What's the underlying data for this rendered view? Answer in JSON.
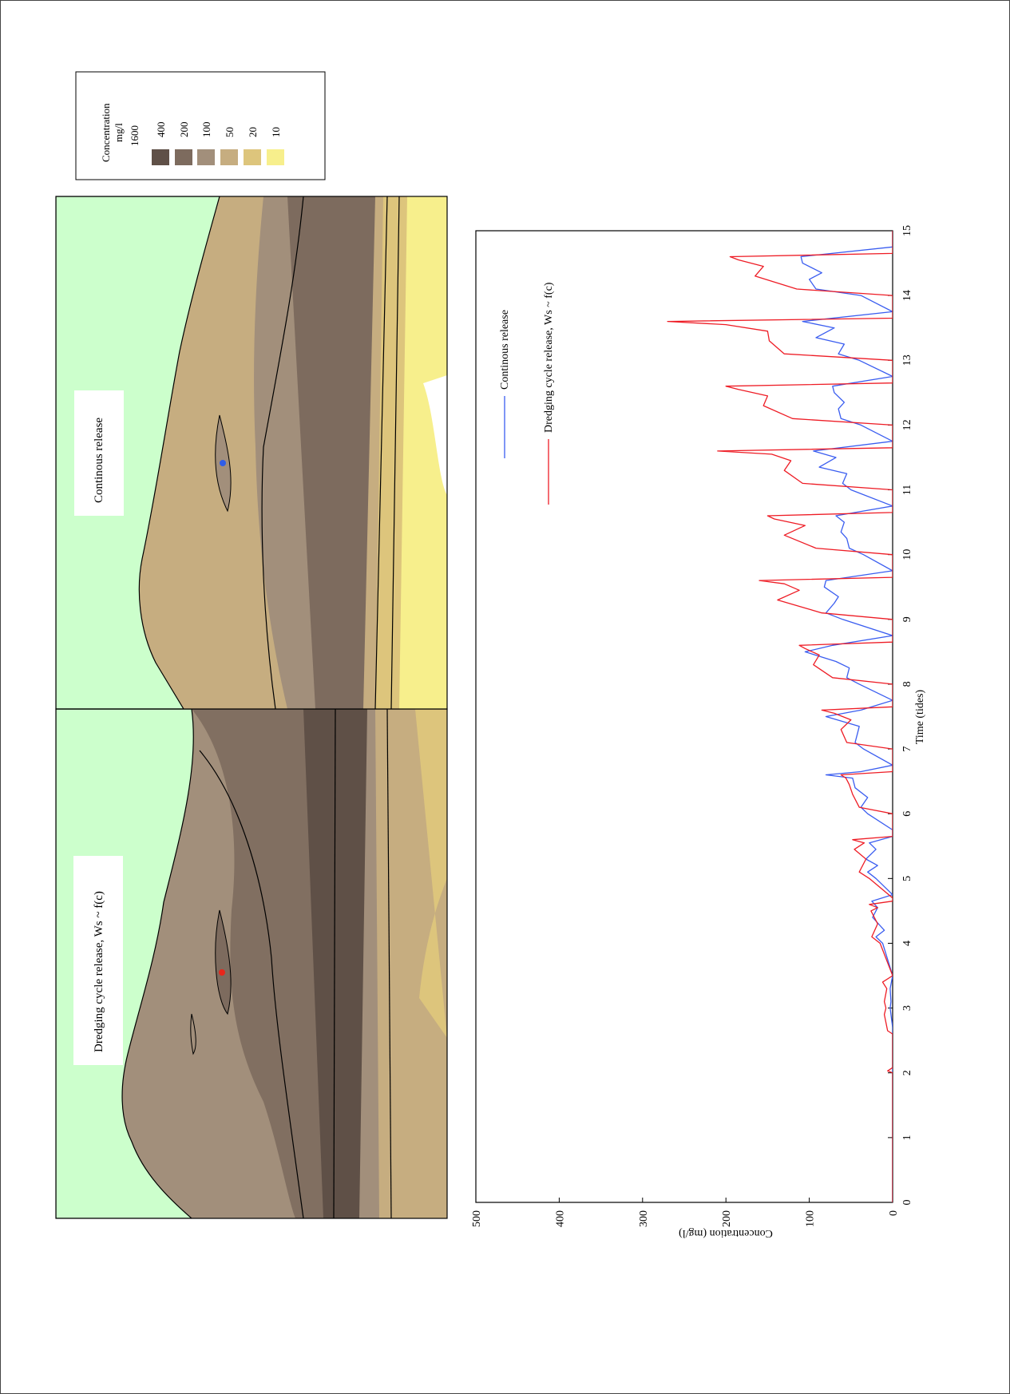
{
  "legend": {
    "title": "Concentration",
    "unit": "mg/l",
    "levels": [
      {
        "label": "1600",
        "color": null
      },
      {
        "label": "400",
        "color": "#5f5047"
      },
      {
        "label": "200",
        "color": "#7d6b5e"
      },
      {
        "label": "100",
        "color": "#a28f7b"
      },
      {
        "label": "50",
        "color": "#c6ad80"
      },
      {
        "label": "20",
        "color": "#ddc57c"
      },
      {
        "label": "10",
        "color": "#f7ef8c"
      }
    ]
  },
  "maps": [
    {
      "title": "Dredging cycle release,  Ws ~ f(c)",
      "marker_color": "#e8261b"
    },
    {
      "title": "Continous release",
      "marker_color": "#2f5de8"
    }
  ],
  "colors": {
    "land": "#ccffcc",
    "continuous": "#3a5df0",
    "dredging": "#ee1c25"
  },
  "chart_data": {
    "type": "line",
    "xlabel": "Time (tides)",
    "ylabel": "Concentration (mg/l)",
    "xlim": [
      0,
      15
    ],
    "ylim": [
      0,
      500
    ],
    "x_ticks": [
      0,
      1,
      2,
      3,
      4,
      5,
      6,
      7,
      8,
      9,
      10,
      11,
      12,
      13,
      14,
      15
    ],
    "y_ticks": [
      0,
      100,
      200,
      300,
      400,
      500
    ],
    "legend_position": "top-left",
    "series": [
      {
        "name": "Continous release",
        "color": "#3a5df0",
        "x": [
          0,
          2,
          2.3,
          2.7,
          2.9,
          3.0,
          3.1,
          3.3,
          3.5,
          4.0,
          4.1,
          4.2,
          4.4,
          4.55,
          4.65,
          4.75,
          5.0,
          5.1,
          5.2,
          5.3,
          5.45,
          5.55,
          5.65,
          5.75,
          6.0,
          6.1,
          6.25,
          6.4,
          6.55,
          6.6,
          6.65,
          6.75,
          7.0,
          7.1,
          7.25,
          7.35,
          7.5,
          7.6,
          7.75,
          8.0,
          8.1,
          8.25,
          8.35,
          8.5,
          8.6,
          8.75,
          9.0,
          9.1,
          9.25,
          9.35,
          9.5,
          9.6,
          9.75,
          10.0,
          10.1,
          10.25,
          10.35,
          10.5,
          10.6,
          10.75,
          11.0,
          11.1,
          11.25,
          11.35,
          11.5,
          11.6,
          11.75,
          12.0,
          12.1,
          12.25,
          12.35,
          12.5,
          12.6,
          12.75,
          13.0,
          13.1,
          13.25,
          13.35,
          13.5,
          13.6,
          13.75,
          14.0,
          14.1,
          14.25,
          14.35,
          14.5,
          14.6,
          14.75,
          15
        ],
        "y": [
          0,
          0,
          0,
          0,
          2,
          3,
          2,
          3,
          0,
          12,
          20,
          10,
          24,
          18,
          25,
          0,
          20,
          30,
          18,
          32,
          20,
          28,
          0,
          0,
          30,
          38,
          30,
          45,
          48,
          80,
          38,
          0,
          35,
          45,
          42,
          40,
          80,
          38,
          0,
          40,
          55,
          52,
          68,
          105,
          72,
          0,
          60,
          80,
          70,
          65,
          82,
          80,
          0,
          35,
          52,
          55,
          62,
          58,
          68,
          0,
          50,
          60,
          55,
          88,
          68,
          95,
          0,
          38,
          62,
          65,
          58,
          70,
          72,
          0,
          40,
          65,
          58,
          92,
          70,
          108,
          0,
          38,
          92,
          100,
          85,
          108,
          110,
          0,
          0
        ]
      },
      {
        "name": "Dredging cycle release,  Ws ~ f(c)",
        "color": "#ee1c25",
        "x": [
          0,
          2.0,
          2.03,
          2.08,
          2.6,
          2.65,
          2.9,
          3.0,
          3.1,
          3.3,
          3.4,
          3.5,
          4.0,
          4.1,
          4.3,
          4.5,
          4.55,
          4.6,
          4.65,
          4.7,
          5.0,
          5.1,
          5.3,
          5.45,
          5.55,
          5.6,
          5.65,
          6.0,
          6.1,
          6.3,
          6.45,
          6.55,
          6.6,
          6.65,
          7.0,
          7.1,
          7.3,
          7.45,
          7.55,
          7.6,
          7.65,
          8.0,
          8.1,
          8.3,
          8.45,
          8.55,
          8.6,
          8.65,
          9.0,
          9.1,
          9.3,
          9.45,
          9.55,
          9.6,
          9.65,
          10.0,
          10.1,
          10.3,
          10.45,
          10.55,
          10.6,
          10.65,
          11.0,
          11.1,
          11.3,
          11.45,
          11.55,
          11.6,
          11.65,
          12.0,
          12.1,
          12.3,
          12.45,
          12.55,
          12.6,
          12.65,
          13.0,
          13.1,
          13.3,
          13.45,
          13.55,
          13.6,
          13.65,
          14.0,
          14.1,
          14.3,
          14.45,
          14.55,
          14.6,
          14.65,
          15
        ],
        "y": [
          0,
          0,
          6,
          0,
          0,
          6,
          10,
          8,
          10,
          7,
          12,
          0,
          15,
          25,
          18,
          26,
          18,
          28,
          0,
          0,
          28,
          40,
          32,
          46,
          34,
          48,
          0,
          0,
          40,
          48,
          52,
          56,
          62,
          0,
          0,
          55,
          62,
          50,
          70,
          85,
          0,
          0,
          72,
          95,
          88,
          105,
          112,
          0,
          0,
          85,
          138,
          112,
          130,
          160,
          0,
          0,
          92,
          130,
          105,
          142,
          150,
          0,
          0,
          108,
          130,
          122,
          145,
          210,
          0,
          0,
          120,
          155,
          150,
          185,
          200,
          0,
          0,
          130,
          148,
          150,
          200,
          270,
          0,
          0,
          115,
          165,
          155,
          185,
          195,
          0,
          0
        ]
      }
    ]
  }
}
